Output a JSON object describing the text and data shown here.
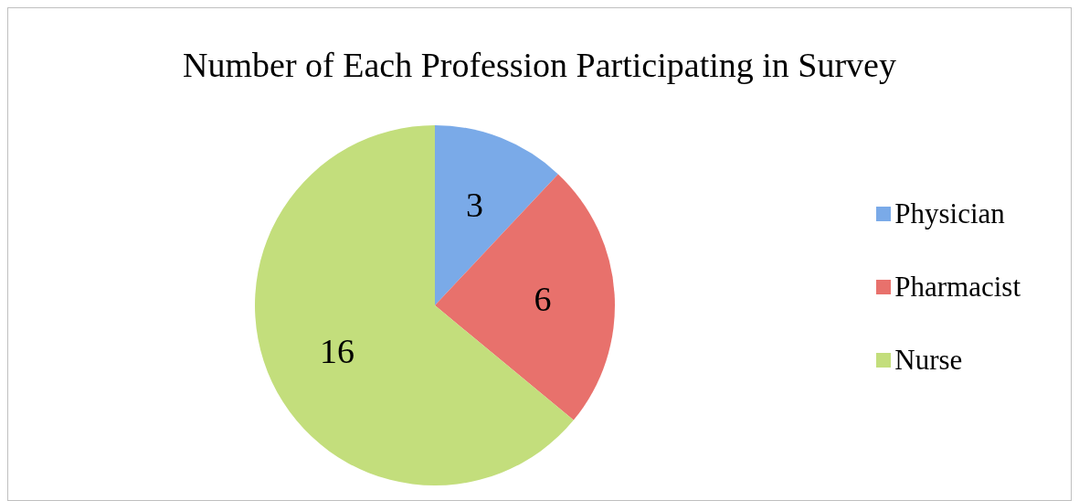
{
  "chart_data": {
    "type": "pie",
    "title": "Number of Each Profession Participating in Survey",
    "categories": [
      "Physician",
      "Pharmacist",
      "Nurse"
    ],
    "values": [
      3,
      6,
      16
    ],
    "colors": [
      "#7aaae8",
      "#e8716c",
      "#c3de7c"
    ],
    "data_labels": true,
    "legend": "right"
  }
}
